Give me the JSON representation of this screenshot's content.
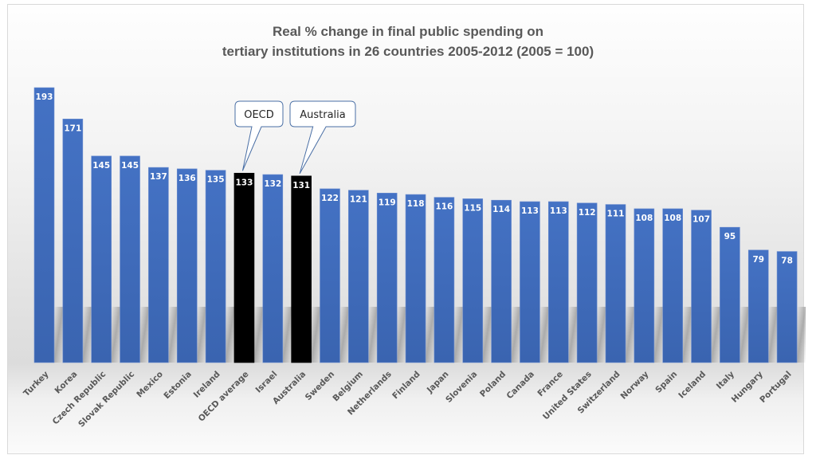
{
  "chart_data": {
    "type": "bar",
    "title_lines": [
      "Real % change in final public spending on",
      "tertiary institutions in 26 countries 2005-2012 (2005 = 100)"
    ],
    "xlabel": "",
    "ylabel": "",
    "ylim": [
      0,
      193
    ],
    "grid": false,
    "legend": "none",
    "categories": [
      "Turkey",
      "Korea",
      "Czech Republic",
      "Slovak Republic",
      "Mexico",
      "Estonia",
      "Ireland",
      "OECD average",
      "Israel",
      "Australia",
      "Sweden",
      "Belgium",
      "Netherlands",
      "Finland",
      "Japan",
      "Slovenia",
      "Poland",
      "Canada",
      "France",
      "United States",
      "Switzerland",
      "Norway",
      "Spain",
      "Iceland",
      "Italy",
      "Hungary",
      "Portugal"
    ],
    "values": [
      193,
      171,
      145,
      145,
      137,
      136,
      135,
      133,
      132,
      131,
      122,
      121,
      119,
      118,
      116,
      115,
      114,
      113,
      113,
      112,
      111,
      108,
      108,
      107,
      95,
      79,
      78
    ],
    "highlighted": [
      "OECD average",
      "Australia"
    ],
    "colors": {
      "default_bar": "#4472c4",
      "highlight_bar": "#000000",
      "data_label": "#ffffff",
      "axis_label": "#595959",
      "title": "#595959",
      "callout_border": "#4a6fa5"
    },
    "annotations": [
      {
        "text": "OECD",
        "target": "OECD average"
      },
      {
        "text": "Australia",
        "target": "Australia"
      }
    ]
  }
}
